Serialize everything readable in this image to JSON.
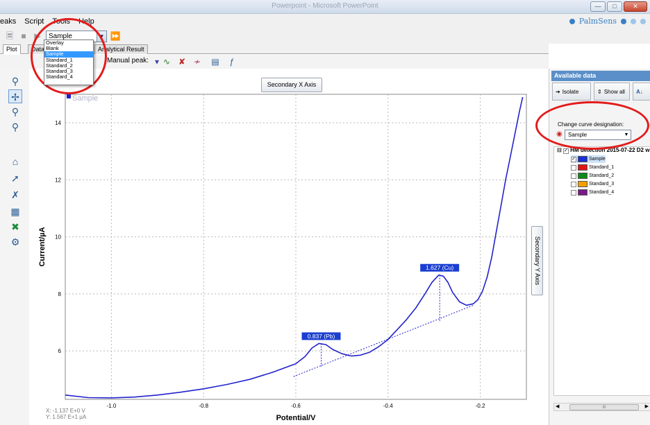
{
  "window": {
    "title": "Powerpoint - Microsoft PowerPoint"
  },
  "menu": {
    "items": [
      "eaks",
      "Script",
      "Tools",
      "Help"
    ]
  },
  "brand": {
    "name": "PalmSens"
  },
  "toolbar": {
    "curve_select_value": "Sample"
  },
  "curve_dropdown": {
    "options": [
      "Overlay",
      "Blank",
      "Sample",
      "Standard_1",
      "Standard_2",
      "Standard_3",
      "Standard_4"
    ],
    "selected": "Sample"
  },
  "tabs": [
    "Plot",
    "Data",
    "M",
    "Analytical Result"
  ],
  "plot_toolbar": {
    "manual_peak_label": "Manual peak:"
  },
  "plot": {
    "secondary_x_axis": "Secondary X Axis",
    "secondary_y_axis": "Secondary Y Axis",
    "coord_readout": [
      "X: -1.137 E+0 V",
      "Y: 1.567 E+1 µA"
    ]
  },
  "chart_data": {
    "type": "line",
    "xlabel": "Potential/V",
    "ylabel": "Current/µA",
    "xlim": [
      -1.1,
      -0.1
    ],
    "ylim": [
      4.3,
      15
    ],
    "x_ticks": [
      -1.0,
      -0.8,
      -0.6,
      -0.4,
      -0.2
    ],
    "y_ticks": [
      6,
      8,
      10,
      12,
      14
    ],
    "grid": true,
    "legend": "top-left",
    "series": [
      {
        "name": "Sample",
        "color": "#2222cc",
        "x": [
          -1.1,
          -1.05,
          -1.0,
          -0.95,
          -0.9,
          -0.85,
          -0.8,
          -0.75,
          -0.7,
          -0.65,
          -0.6,
          -0.58,
          -0.565,
          -0.55,
          -0.535,
          -0.52,
          -0.5,
          -0.48,
          -0.46,
          -0.44,
          -0.42,
          -0.4,
          -0.38,
          -0.36,
          -0.34,
          -0.32,
          -0.305,
          -0.29,
          -0.28,
          -0.27,
          -0.26,
          -0.245,
          -0.23,
          -0.215,
          -0.205,
          -0.195,
          -0.185,
          -0.175,
          -0.165,
          -0.155,
          -0.145,
          -0.135,
          -0.125,
          -0.115,
          -0.108
        ],
        "y": [
          4.45,
          4.36,
          4.35,
          4.38,
          4.45,
          4.55,
          4.67,
          4.82,
          5.0,
          5.25,
          5.55,
          5.8,
          6.1,
          6.26,
          6.22,
          6.05,
          5.9,
          5.82,
          5.85,
          5.95,
          6.15,
          6.4,
          6.75,
          7.1,
          7.5,
          8.0,
          8.4,
          8.66,
          8.62,
          8.4,
          8.05,
          7.72,
          7.6,
          7.65,
          7.8,
          8.1,
          8.6,
          9.3,
          10.2,
          11.1,
          12.0,
          12.8,
          13.6,
          14.4,
          14.9
        ]
      }
    ],
    "peaks": [
      {
        "label": "0.837 (Pb)",
        "x": -0.545,
        "y": 6.26,
        "baseline_y": 5.45
      },
      {
        "label": "1.627 (Cu)",
        "x": -0.288,
        "y": 8.66,
        "baseline_y": 7.0
      }
    ],
    "baseline": {
      "x": [
        -0.605,
        -0.215
      ],
      "y": [
        5.1,
        7.6
      ]
    }
  },
  "right_panel": {
    "header": "Available data",
    "isolate_label": "Isolate",
    "show_all_label": "Show all",
    "change_curve_label": "Change curve designation:",
    "curve_designation_value": "Sample",
    "tree_root": "HM detection 2015-07-22 D2 w",
    "tree_items": [
      {
        "label": "Sample",
        "color": "#1a2fd6",
        "checked": true
      },
      {
        "label": "Standard_1",
        "color": "#e01616",
        "checked": false
      },
      {
        "label": "Standard_2",
        "color": "#0f8a1a",
        "checked": false
      },
      {
        "label": "Standard_3",
        "color": "#f2a000",
        "checked": false
      },
      {
        "label": "Standard_4",
        "color": "#7a1a86",
        "checked": false
      }
    ],
    "scroll_glyph": "III"
  }
}
